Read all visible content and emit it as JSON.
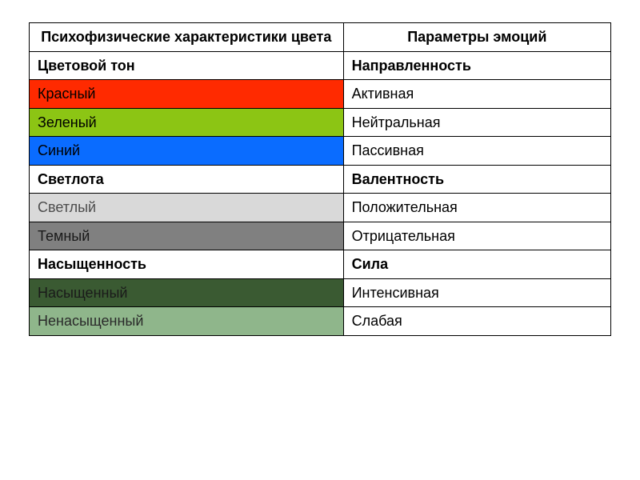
{
  "table": {
    "col_widths_pct": [
      54,
      46
    ],
    "border_color": "#000000",
    "font_family": "Arial",
    "header_fontsize": 18,
    "cell_fontsize": 18,
    "header": {
      "left": "Психофизические характеристики цвета",
      "right": "Параметры эмоций",
      "bg": "#ffffff",
      "bold": true,
      "align": "center"
    },
    "rows": [
      {
        "kind": "section",
        "left": "Цветовой тон",
        "right": "Направленность",
        "left_bg": "#ffffff",
        "right_bg": "#ffffff",
        "left_color": "#000000"
      },
      {
        "kind": "normal",
        "left": "Красный",
        "right": "Активная",
        "left_bg": "#ff2a00",
        "right_bg": "#ffffff",
        "left_color": "#000000"
      },
      {
        "kind": "normal",
        "left": "Зеленый",
        "right": "Нейтральная",
        "left_bg": "#8cc514",
        "right_bg": "#ffffff",
        "left_color": "#000000"
      },
      {
        "kind": "normal",
        "left": "Синий",
        "right": "Пассивная",
        "left_bg": "#0a6cff",
        "right_bg": "#ffffff",
        "left_color": "#000000"
      },
      {
        "kind": "section",
        "left": "Светлота",
        "right": "Валентность",
        "left_bg": "#ffffff",
        "right_bg": "#ffffff",
        "left_color": "#000000"
      },
      {
        "kind": "normal",
        "left": "Светлый",
        "right": "Положительная",
        "left_bg": "#d9d9d9",
        "right_bg": "#ffffff",
        "left_color": "#4d4d4d"
      },
      {
        "kind": "normal",
        "left": "Темный",
        "right": "Отрицательная",
        "left_bg": "#808080",
        "right_bg": "#ffffff",
        "left_color": "#1a1a1a"
      },
      {
        "kind": "section",
        "left": "Насыщенность",
        "right": "Сила",
        "left_bg": "#ffffff",
        "right_bg": "#ffffff",
        "left_color": "#000000"
      },
      {
        "kind": "normal",
        "left": "Насыщенный",
        "right": "Интенсивная",
        "left_bg": "#3a5a32",
        "right_bg": "#ffffff",
        "left_color": "#1a1a1a"
      },
      {
        "kind": "normal",
        "left": "Ненасыщенный",
        "right": "Слабая",
        "left_bg": "#8fb68b",
        "right_bg": "#ffffff",
        "left_color": "#2a2a2a"
      }
    ]
  }
}
